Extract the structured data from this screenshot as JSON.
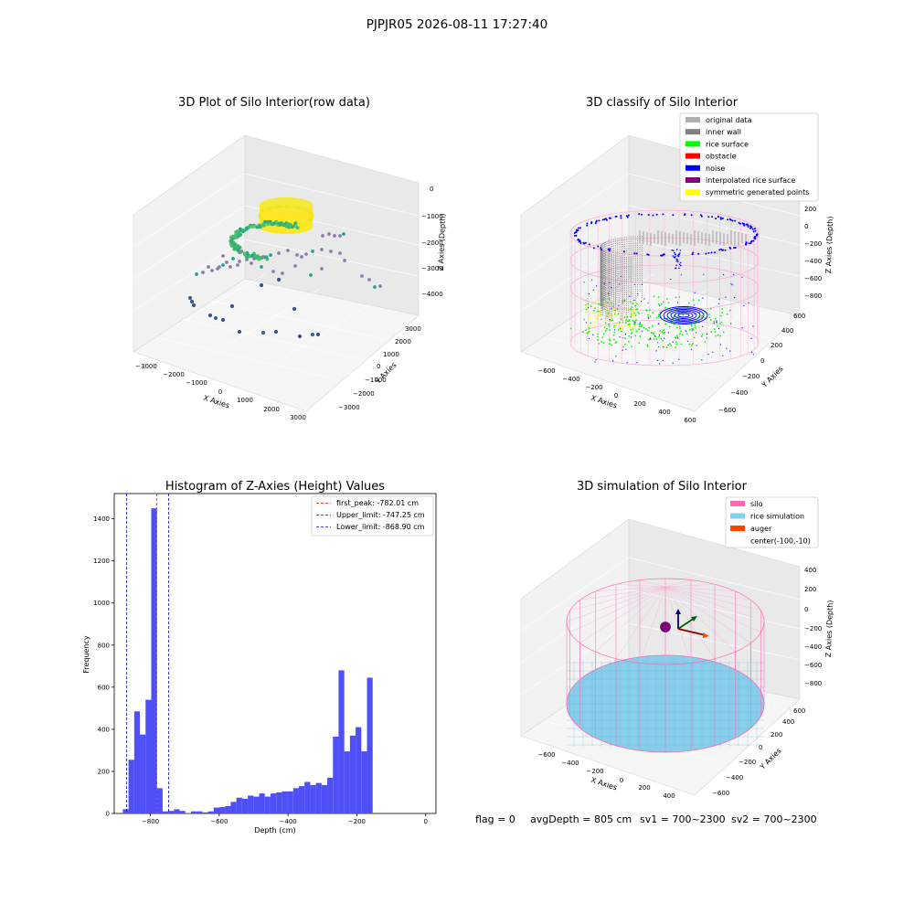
{
  "figure": {
    "suptitle": "PJPJR05 2026-08-11 17:27:40",
    "bottom_info": {
      "flag": "flag = 0",
      "avg_depth": "avgDepth = 805 cm",
      "sv1": "sv1 = 700~2300",
      "sv2": "sv2 = 700~2300"
    }
  },
  "chart_data": [
    {
      "type": "scatter",
      "projection": "3d",
      "title": "3D Plot of Silo Interior(row data)",
      "xlabel": "X Axies",
      "ylabel": "Y Axies",
      "zlabel": "Z Axies (Depth)",
      "xticks": [
        "−3000",
        "−2000",
        "−1000",
        "0",
        "1000",
        "2000",
        "3000"
      ],
      "yticks": [
        "−3000",
        "−2000",
        "−1000",
        "0",
        "1000",
        "2000",
        "3000"
      ],
      "zticks": [
        "0",
        "−1000",
        "−2000",
        "−3000",
        "−4000"
      ],
      "colormap": "viridis",
      "colors": {
        "high": "#fde725",
        "mid": "#21a685",
        "low": "#3b528b",
        "outlier": "#8f7cb0"
      }
    },
    {
      "type": "scatter",
      "projection": "3d",
      "title": "3D classify of Silo Interior",
      "xlabel": "X Axies",
      "ylabel": "Y Axies",
      "zlabel": "Z Axies (Depth)",
      "xticks": [
        "−600",
        "−400",
        "−200",
        "0",
        "200",
        "400",
        "600"
      ],
      "yticks": [
        "−600",
        "−400",
        "−200",
        "0",
        "200",
        "400",
        "600"
      ],
      "zticks": [
        "200",
        "0",
        "−200",
        "−400",
        "−600",
        "−800"
      ],
      "legend": {
        "location": "upper-right",
        "entries": [
          {
            "label": "original data",
            "color": "#b0b0b0"
          },
          {
            "label": "inner wall",
            "color": "#808080"
          },
          {
            "label": "rice surface",
            "color": "#00ff00"
          },
          {
            "label": "obstacle",
            "color": "#ff0000"
          },
          {
            "label": "noise",
            "color": "#0000ff"
          },
          {
            "label": "interpolated rice surface",
            "color": "#800080"
          },
          {
            "label": "symmetric generated points",
            "color": "#ffff00"
          }
        ]
      }
    },
    {
      "type": "bar",
      "title": "Histogram of Z-Axies (Height) Values",
      "xlabel": "Depth (cm)",
      "ylabel": "Frequency",
      "xlim": [
        -905,
        30
      ],
      "ylim": [
        0,
        1520
      ],
      "xticks": [
        -800,
        -600,
        -400,
        -200,
        0
      ],
      "xtick_labels": [
        "−800",
        "−600",
        "−400",
        "−200",
        "0"
      ],
      "yticks": [
        0,
        200,
        400,
        600,
        800,
        1000,
        1200,
        1400
      ],
      "bar_color": "#4f4ff8",
      "bin_start": -880,
      "bin_width": 16.5,
      "values": [
        20,
        255,
        485,
        375,
        540,
        1450,
        120,
        10,
        12,
        20,
        12,
        2,
        10,
        10,
        5,
        10,
        28,
        30,
        35,
        55,
        75,
        70,
        85,
        80,
        95,
        80,
        95,
        100,
        105,
        105,
        120,
        130,
        150,
        135,
        145,
        135,
        170,
        365,
        680,
        295,
        370,
        410,
        295,
        645
      ],
      "lines": [
        {
          "label": "first_peak: -782.01 cm",
          "x": -782.01,
          "color": "#ff0000"
        },
        {
          "label": "Upper_limit: -747.25 cm",
          "x": -747.25,
          "color": "#0000cc"
        },
        {
          "label": "Lower_limit: -868.90 cm",
          "x": -868.9,
          "color": "#0000cc"
        }
      ],
      "legend": {
        "location": "top-right"
      }
    },
    {
      "type": "scatter",
      "projection": "3d",
      "title": "3D simulation of Silo Interior",
      "xlabel": "X Axies",
      "ylabel": "Y Axies",
      "zlabel": "Z Axies (Depth)",
      "xticks": [
        "−600",
        "−400",
        "−200",
        "0",
        "200",
        "400"
      ],
      "yticks": [
        "−600",
        "−400",
        "−200",
        "0",
        "200",
        "400",
        "600"
      ],
      "zticks": [
        "400",
        "200",
        "0",
        "−200",
        "−400",
        "−600",
        "−800"
      ],
      "legend": {
        "location": "upper-right",
        "entries": [
          {
            "label": "silo",
            "color": "#ff69b4"
          },
          {
            "label": "rice simulation",
            "color": "#87ceeb"
          },
          {
            "label": "auger",
            "color": "#ff4500"
          },
          {
            "label": "center(-100,-10)",
            "color": ""
          }
        ]
      }
    }
  ]
}
